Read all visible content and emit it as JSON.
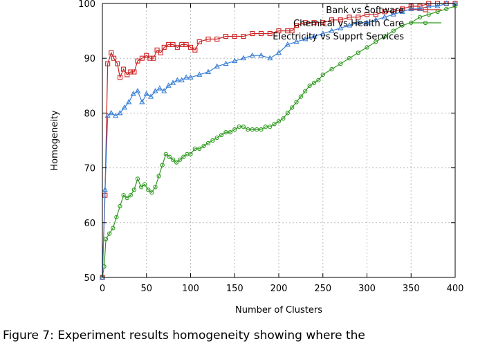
{
  "caption": "Figure 7: Experiment results homogeneity showing where the",
  "chart_data": {
    "type": "line",
    "title": "",
    "xlabel": "Number of Clusters",
    "ylabel": "Homogeneity",
    "xlim": [
      0,
      400
    ],
    "ylim": [
      50,
      100
    ],
    "xticks": [
      0,
      50,
      100,
      150,
      200,
      250,
      300,
      350,
      400
    ],
    "yticks": [
      50,
      60,
      70,
      80,
      90,
      100
    ],
    "grid": true,
    "legend_position": "top-right",
    "series": [
      {
        "name": "Bank vs Software",
        "color": "#cc2222",
        "marker": "square",
        "points": [
          [
            0,
            50
          ],
          [
            3,
            65
          ],
          [
            6,
            89
          ],
          [
            10,
            91
          ],
          [
            13,
            90
          ],
          [
            17,
            89
          ],
          [
            20,
            86.5
          ],
          [
            24,
            88
          ],
          [
            28,
            87
          ],
          [
            32,
            87.5
          ],
          [
            36,
            87.5
          ],
          [
            40,
            89.5
          ],
          [
            45,
            90
          ],
          [
            50,
            90.5
          ],
          [
            54,
            90
          ],
          [
            58,
            90
          ],
          [
            62,
            91.5
          ],
          [
            66,
            91
          ],
          [
            70,
            92
          ],
          [
            75,
            92.5
          ],
          [
            80,
            92.5
          ],
          [
            85,
            92
          ],
          [
            90,
            92.5
          ],
          [
            95,
            92.5
          ],
          [
            100,
            92
          ],
          [
            105,
            91.5
          ],
          [
            110,
            93
          ],
          [
            120,
            93.5
          ],
          [
            130,
            93.5
          ],
          [
            140,
            94
          ],
          [
            150,
            94
          ],
          [
            160,
            94
          ],
          [
            170,
            94.5
          ],
          [
            180,
            94.5
          ],
          [
            190,
            94.5
          ],
          [
            200,
            95
          ],
          [
            210,
            95
          ],
          [
            215,
            95
          ],
          [
            220,
            96
          ],
          [
            230,
            96.5
          ],
          [
            240,
            96.5
          ],
          [
            250,
            96.5
          ],
          [
            260,
            97
          ],
          [
            270,
            97
          ],
          [
            280,
            97.5
          ],
          [
            290,
            97.5
          ],
          [
            300,
            98
          ],
          [
            310,
            98
          ],
          [
            320,
            98.5
          ],
          [
            330,
            98.5
          ],
          [
            340,
            99
          ],
          [
            350,
            99.5
          ],
          [
            360,
            99.5
          ],
          [
            370,
            100
          ],
          [
            380,
            100
          ],
          [
            390,
            100
          ],
          [
            400,
            100
          ]
        ]
      },
      {
        "name": "Chemical vs Health Care",
        "color": "#2e9a1e",
        "marker": "circle",
        "points": [
          [
            0,
            50
          ],
          [
            2,
            52
          ],
          [
            4,
            57
          ],
          [
            8,
            58
          ],
          [
            12,
            59
          ],
          [
            16,
            61
          ],
          [
            20,
            63
          ],
          [
            24,
            65
          ],
          [
            28,
            64.5
          ],
          [
            32,
            65
          ],
          [
            36,
            66
          ],
          [
            40,
            68
          ],
          [
            44,
            66.5
          ],
          [
            48,
            67
          ],
          [
            52,
            66
          ],
          [
            56,
            65.5
          ],
          [
            60,
            66.5
          ],
          [
            64,
            68.5
          ],
          [
            68,
            70.5
          ],
          [
            72,
            72.5
          ],
          [
            76,
            72
          ],
          [
            80,
            71.5
          ],
          [
            84,
            71
          ],
          [
            88,
            71.5
          ],
          [
            92,
            72
          ],
          [
            96,
            72.5
          ],
          [
            100,
            72.5
          ],
          [
            105,
            73.5
          ],
          [
            110,
            73.5
          ],
          [
            115,
            74
          ],
          [
            120,
            74.5
          ],
          [
            125,
            75
          ],
          [
            130,
            75.5
          ],
          [
            135,
            76
          ],
          [
            140,
            76.5
          ],
          [
            145,
            76.5
          ],
          [
            150,
            77
          ],
          [
            155,
            77.5
          ],
          [
            160,
            77.5
          ],
          [
            165,
            77
          ],
          [
            170,
            77
          ],
          [
            175,
            77
          ],
          [
            180,
            77
          ],
          [
            185,
            77.5
          ],
          [
            190,
            77.5
          ],
          [
            195,
            78
          ],
          [
            200,
            78.5
          ],
          [
            205,
            79
          ],
          [
            210,
            80
          ],
          [
            215,
            81
          ],
          [
            220,
            82
          ],
          [
            225,
            83
          ],
          [
            230,
            84
          ],
          [
            235,
            85
          ],
          [
            240,
            85.5
          ],
          [
            245,
            86
          ],
          [
            250,
            87
          ],
          [
            260,
            88
          ],
          [
            270,
            89
          ],
          [
            280,
            90
          ],
          [
            290,
            91
          ],
          [
            300,
            92
          ],
          [
            310,
            93
          ],
          [
            320,
            94
          ],
          [
            330,
            95
          ],
          [
            340,
            96
          ],
          [
            350,
            96.5
          ],
          [
            360,
            97.5
          ],
          [
            370,
            98
          ],
          [
            380,
            98.5
          ],
          [
            390,
            99
          ],
          [
            400,
            99.5
          ]
        ]
      },
      {
        "name": "Electricity vs Supprt Services",
        "color": "#3a7fd5",
        "marker": "triangle",
        "points": [
          [
            0,
            50
          ],
          [
            3,
            66
          ],
          [
            6,
            79.5
          ],
          [
            10,
            80
          ],
          [
            15,
            79.5
          ],
          [
            20,
            80
          ],
          [
            25,
            81
          ],
          [
            30,
            82
          ],
          [
            35,
            83.5
          ],
          [
            40,
            84
          ],
          [
            45,
            82
          ],
          [
            50,
            83.5
          ],
          [
            55,
            83
          ],
          [
            60,
            84
          ],
          [
            65,
            84.5
          ],
          [
            70,
            84
          ],
          [
            75,
            85
          ],
          [
            80,
            85.5
          ],
          [
            85,
            86
          ],
          [
            90,
            86
          ],
          [
            95,
            86.5
          ],
          [
            100,
            86.5
          ],
          [
            110,
            87
          ],
          [
            120,
            87.5
          ],
          [
            130,
            88.5
          ],
          [
            140,
            89
          ],
          [
            150,
            89.5
          ],
          [
            160,
            90
          ],
          [
            170,
            90.5
          ],
          [
            180,
            90.5
          ],
          [
            190,
            90
          ],
          [
            200,
            91
          ],
          [
            210,
            92.5
          ],
          [
            220,
            93
          ],
          [
            230,
            93.5
          ],
          [
            240,
            94
          ],
          [
            250,
            94.5
          ],
          [
            260,
            95
          ],
          [
            270,
            95.5
          ],
          [
            280,
            96
          ],
          [
            290,
            96.5
          ],
          [
            300,
            96.5
          ],
          [
            310,
            97
          ],
          [
            320,
            97.5
          ],
          [
            330,
            98
          ],
          [
            340,
            98.5
          ],
          [
            350,
            99
          ],
          [
            360,
            99
          ],
          [
            370,
            99.5
          ],
          [
            380,
            99.5
          ],
          [
            390,
            100
          ],
          [
            400,
            100
          ]
        ]
      }
    ]
  }
}
